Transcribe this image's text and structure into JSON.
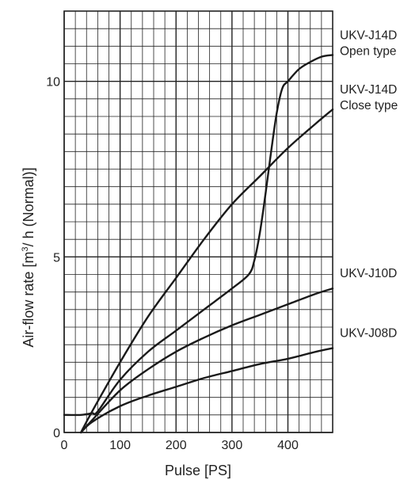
{
  "chart_data": {
    "type": "line",
    "xlabel": "Pulse [PS]",
    "ylabel_main": "Air-flow rate [m",
    "ylabel_sup": "3",
    "ylabel_tail": "/ h (Normal)]",
    "xlim": [
      0,
      480
    ],
    "ylim": [
      0,
      12
    ],
    "x_ticks": [
      0,
      100,
      200,
      300,
      400
    ],
    "y_ticks": [
      0,
      5,
      10
    ],
    "x_minor_step": 20,
    "y_minor_step": 0.5,
    "grid": true,
    "series": [
      {
        "name": "UKV-J14D Open type",
        "label_lines": [
          "UKV-J14D",
          "Open type"
        ],
        "x": [
          0,
          30,
          50,
          60,
          100,
          150,
          200,
          250,
          300,
          330,
          340,
          350,
          360,
          370,
          380,
          390,
          400,
          420,
          440,
          460,
          480
        ],
        "y": [
          0.5,
          0.5,
          0.55,
          0.6,
          1.5,
          2.3,
          2.9,
          3.5,
          4.1,
          4.5,
          4.9,
          5.7,
          6.8,
          8.0,
          9.1,
          9.8,
          10.0,
          10.35,
          10.55,
          10.7,
          10.75
        ]
      },
      {
        "name": "UKV-J14D Close type",
        "label_lines": [
          "UKV-J14D",
          "Close type"
        ],
        "x": [
          30,
          50,
          100,
          150,
          200,
          250,
          300,
          350,
          400,
          450,
          480
        ],
        "y": [
          0,
          0.6,
          2.0,
          3.3,
          4.4,
          5.5,
          6.5,
          7.3,
          8.1,
          8.8,
          9.2
        ]
      },
      {
        "name": "UKV-J10D",
        "label_lines": [
          "UKV-J10D"
        ],
        "x": [
          30,
          50,
          100,
          150,
          200,
          250,
          300,
          350,
          400,
          450,
          480
        ],
        "y": [
          0,
          0.35,
          1.2,
          1.8,
          2.3,
          2.7,
          3.05,
          3.35,
          3.65,
          3.95,
          4.1
        ]
      },
      {
        "name": "UKV-J08D",
        "label_lines": [
          "UKV-J08D"
        ],
        "x": [
          30,
          50,
          100,
          150,
          200,
          250,
          300,
          350,
          400,
          450,
          480
        ],
        "y": [
          0,
          0.3,
          0.75,
          1.05,
          1.3,
          1.55,
          1.75,
          1.95,
          2.1,
          2.3,
          2.4
        ]
      }
    ]
  }
}
